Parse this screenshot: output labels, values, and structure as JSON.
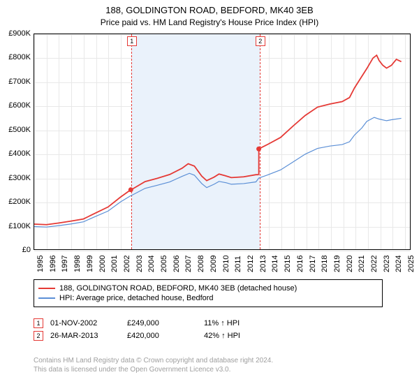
{
  "title_line1": "188, GOLDINGTON ROAD, BEDFORD, MK40 3EB",
  "title_line2": "Price paid vs. HM Land Registry's House Price Index (HPI)",
  "chart": {
    "x_start": 1995,
    "x_end": 2025.5,
    "y_min": 0,
    "y_max": 900000,
    "y_ticks": [
      0,
      100000,
      200000,
      300000,
      400000,
      500000,
      600000,
      700000,
      800000,
      900000
    ],
    "y_tick_labels": [
      "£0",
      "£100K",
      "£200K",
      "£300K",
      "£400K",
      "£500K",
      "£600K",
      "£700K",
      "£800K",
      "£900K"
    ],
    "x_ticks": [
      1995,
      1996,
      1997,
      1998,
      1999,
      2000,
      2001,
      2002,
      2003,
      2004,
      2005,
      2006,
      2007,
      2008,
      2009,
      2010,
      2011,
      2012,
      2013,
      2014,
      2015,
      2016,
      2017,
      2018,
      2019,
      2020,
      2021,
      2022,
      2023,
      2024,
      2025
    ],
    "grid_color": "#e8e8e8",
    "shade_color": "#eaf2fb",
    "bg_color": "#ffffff",
    "colors": {
      "hpi": "#5b8fd6",
      "property": "#e53935"
    },
    "line_width": {
      "hpi": 1.2,
      "property": 1.8
    },
    "hpi_series": [
      [
        1995,
        95000
      ],
      [
        1996,
        93000
      ],
      [
        1997,
        99000
      ],
      [
        1998,
        106000
      ],
      [
        1999,
        115000
      ],
      [
        2000,
        138000
      ],
      [
        2001,
        160000
      ],
      [
        2002,
        198000
      ],
      [
        2002.84,
        224000
      ],
      [
        2003,
        228000
      ],
      [
        2004,
        255000
      ],
      [
        2005,
        268000
      ],
      [
        2006,
        282000
      ],
      [
        2007,
        305000
      ],
      [
        2007.6,
        318000
      ],
      [
        2008,
        310000
      ],
      [
        2008.6,
        275000
      ],
      [
        2009,
        258000
      ],
      [
        2009.6,
        272000
      ],
      [
        2010,
        284000
      ],
      [
        2010.6,
        278000
      ],
      [
        2011,
        272000
      ],
      [
        2012,
        275000
      ],
      [
        2013,
        282000
      ],
      [
        2013.23,
        298000
      ],
      [
        2014,
        312000
      ],
      [
        2015,
        332000
      ],
      [
        2016,
        365000
      ],
      [
        2017,
        398000
      ],
      [
        2018,
        422000
      ],
      [
        2019,
        432000
      ],
      [
        2020,
        438000
      ],
      [
        2020.6,
        450000
      ],
      [
        2021,
        478000
      ],
      [
        2021.6,
        508000
      ],
      [
        2022,
        535000
      ],
      [
        2022.6,
        552000
      ],
      [
        2023,
        545000
      ],
      [
        2023.6,
        538000
      ],
      [
        2024,
        542000
      ],
      [
        2024.8,
        548000
      ]
    ],
    "property_series_pre": [
      [
        1995,
        105000
      ],
      [
        1996,
        103000
      ],
      [
        1997,
        110000
      ],
      [
        1998,
        118000
      ],
      [
        1999,
        127000
      ],
      [
        2000,
        152000
      ],
      [
        2001,
        177000
      ],
      [
        2002,
        218000
      ],
      [
        2002.84,
        249000
      ]
    ],
    "property_series_post": [
      [
        2002.84,
        249000
      ],
      [
        2003,
        253000
      ],
      [
        2004,
        283000
      ],
      [
        2005,
        297000
      ],
      [
        2006,
        313000
      ],
      [
        2007,
        339000
      ],
      [
        2007.5,
        358000
      ],
      [
        2008,
        348000
      ],
      [
        2008.6,
        306000
      ],
      [
        2009,
        287000
      ],
      [
        2009.6,
        302000
      ],
      [
        2010,
        315000
      ],
      [
        2010.5,
        308000
      ],
      [
        2011,
        300000
      ],
      [
        2012,
        303000
      ],
      [
        2013,
        312000
      ],
      [
        2013.23,
        312000
      ]
    ],
    "property_series_after2": [
      [
        2013.23,
        420000
      ],
      [
        2014,
        440000
      ],
      [
        2015,
        468000
      ],
      [
        2016,
        515000
      ],
      [
        2017,
        560000
      ],
      [
        2018,
        595000
      ],
      [
        2019,
        608000
      ],
      [
        2020,
        618000
      ],
      [
        2020.6,
        635000
      ],
      [
        2021,
        675000
      ],
      [
        2021.5,
        716000
      ],
      [
        2022,
        756000
      ],
      [
        2022.5,
        800000
      ],
      [
        2022.8,
        812000
      ],
      [
        2023,
        790000
      ],
      [
        2023.3,
        770000
      ],
      [
        2023.6,
        758000
      ],
      [
        2024,
        770000
      ],
      [
        2024.4,
        795000
      ],
      [
        2024.8,
        785000
      ]
    ],
    "events": [
      {
        "x": 2002.84,
        "label": "1"
      },
      {
        "x": 2013.23,
        "label": "2"
      }
    ],
    "shade": {
      "from": 2002.84,
      "to": 2013.23
    }
  },
  "legend": {
    "line1": "188, GOLDINGTON ROAD, BEDFORD, MK40 3EB (detached house)",
    "line2": "HPI: Average price, detached house, Bedford"
  },
  "sales": [
    {
      "n": "1",
      "date": "01-NOV-2002",
      "price": "£249,000",
      "delta": "11% ↑ HPI"
    },
    {
      "n": "2",
      "date": "26-MAR-2013",
      "price": "£420,000",
      "delta": "42% ↑ HPI"
    }
  ],
  "footer1": "Contains HM Land Registry data © Crown copyright and database right 2024.",
  "footer2": "This data is licensed under the Open Government Licence v3.0."
}
